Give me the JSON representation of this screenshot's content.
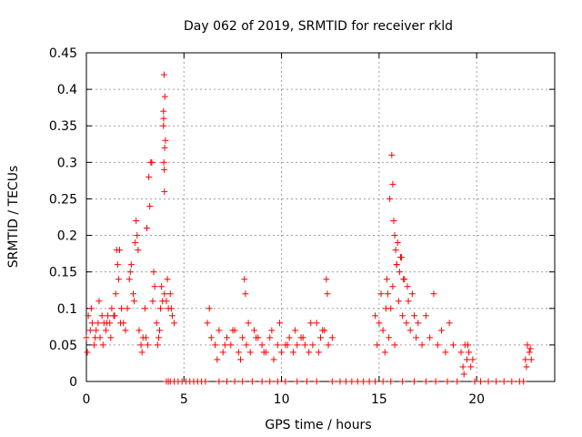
{
  "chart_data": {
    "type": "scatter",
    "title": "Day 062 of 2019, SRMTID for receiver rkld",
    "xlabel": "GPS time / hours",
    "ylabel": "SRMTID / TECUs",
    "xlim": [
      0,
      24
    ],
    "ylim": [
      0,
      0.45
    ],
    "grid": true,
    "marker": "+",
    "color": "#ff0000",
    "xticks": [
      0,
      5,
      10,
      15,
      20
    ],
    "xtick_labels": [
      "0",
      "5",
      "10",
      "15",
      "20"
    ],
    "yticks": [
      0,
      0.05,
      0.1,
      0.15,
      0.2,
      0.25,
      0.3,
      0.35,
      0.4,
      0.45
    ],
    "ytick_labels": [
      "0",
      "0.05",
      "0.1",
      "0.15",
      "0.2",
      "0.25",
      "0.3",
      "0.35",
      "0.4",
      "0.45"
    ],
    "x": [
      0.0,
      0.1,
      0.2,
      0.3,
      0.4,
      0.5,
      0.6,
      0.7,
      0.8,
      0.9,
      1.0,
      1.1,
      1.2,
      1.3,
      1.4,
      1.5,
      1.6,
      1.7,
      1.8,
      1.9,
      2.0,
      2.1,
      2.2,
      2.3,
      2.4,
      2.5,
      2.6,
      2.7,
      2.8,
      2.9,
      3.0,
      3.1,
      3.2,
      3.3,
      3.4,
      3.5,
      3.6,
      3.7,
      3.8,
      3.9,
      4.0,
      4.1,
      4.2,
      4.3,
      4.4,
      4.5,
      0.05,
      0.25,
      0.45,
      0.65,
      0.85,
      1.05,
      1.25,
      1.45,
      1.55,
      1.65,
      1.75,
      2.25,
      2.45,
      2.55,
      2.65,
      2.85,
      3.05,
      3.15,
      3.25,
      3.35,
      3.45,
      3.65,
      3.75,
      3.85,
      3.95,
      3.98,
      4.02,
      4.05,
      4.15,
      4.35,
      3.95,
      3.96,
      3.97,
      3.99,
      4.0,
      4.01,
      6.2,
      6.4,
      6.6,
      6.8,
      7.0,
      7.2,
      7.4,
      7.6,
      7.8,
      8.0,
      8.2,
      8.4,
      8.6,
      8.8,
      9.0,
      9.2,
      9.4,
      9.6,
      9.8,
      10.0,
      10.2,
      10.4,
      10.6,
      10.8,
      11.0,
      11.2,
      11.4,
      11.6,
      11.8,
      12.0,
      12.2,
      12.4,
      12.6,
      6.3,
      6.7,
      7.1,
      7.5,
      7.9,
      8.1,
      8.15,
      8.3,
      8.7,
      9.1,
      9.5,
      9.9,
      10.3,
      10.7,
      11.1,
      11.5,
      11.9,
      12.1,
      12.3,
      12.35,
      14.8,
      14.9,
      15.0,
      15.1,
      15.2,
      15.3,
      15.4,
      15.5,
      15.6,
      15.7,
      15.8,
      15.9,
      16.0,
      16.1,
      16.2,
      16.3,
      16.4,
      16.5,
      16.6,
      16.7,
      16.8,
      16.9,
      17.0,
      17.2,
      17.4,
      17.6,
      17.8,
      18.0,
      18.2,
      18.4,
      18.6,
      18.8,
      15.55,
      15.65,
      15.7,
      15.75,
      15.8,
      15.85,
      15.9,
      15.95,
      16.05,
      16.15,
      15.45,
      15.35,
      16.25,
      16.45,
      19.2,
      19.3,
      19.4,
      19.5,
      19.6,
      19.7,
      19.8,
      19.35,
      19.55,
      22.5,
      22.6,
      22.7,
      22.8,
      22.55,
      22.75,
      4.1,
      4.2,
      4.3,
      4.5,
      4.7,
      4.9,
      5.1,
      5.3,
      5.5,
      5.7,
      5.9,
      6.1,
      6.8,
      7.2,
      7.6,
      8.0,
      8.5,
      9.0,
      9.4,
      9.8,
      10.2,
      10.8,
      11.3,
      11.8,
      12.6,
      13.0,
      13.3,
      13.6,
      13.9,
      14.2,
      14.5,
      14.8,
      15.2,
      15.6,
      16.2,
      16.8,
      17.4,
      17.9,
      18.5,
      19.0,
      19.9,
      20.2,
      20.6,
      21.0,
      21.4,
      21.8,
      22.2,
      22.4
    ],
    "y": [
      0.06,
      0.09,
      0.07,
      0.08,
      0.05,
      0.07,
      0.08,
      0.06,
      0.09,
      0.08,
      0.07,
      0.09,
      0.08,
      0.1,
      0.09,
      0.12,
      0.16,
      0.18,
      0.1,
      0.08,
      0.07,
      0.1,
      0.14,
      0.16,
      0.12,
      0.19,
      0.2,
      0.07,
      0.05,
      0.06,
      0.1,
      0.21,
      0.28,
      0.3,
      0.11,
      0.13,
      0.08,
      0.06,
      0.1,
      0.11,
      0.12,
      0.11,
      0.1,
      0.12,
      0.09,
      0.08,
      0.04,
      0.1,
      0.06,
      0.11,
      0.05,
      0.08,
      0.06,
      0.09,
      0.18,
      0.14,
      0.08,
      0.15,
      0.11,
      0.22,
      0.18,
      0.04,
      0.06,
      0.05,
      0.24,
      0.3,
      0.15,
      0.05,
      0.07,
      0.13,
      0.35,
      0.42,
      0.39,
      0.33,
      0.14,
      0.1,
      0.37,
      0.36,
      0.3,
      0.29,
      0.26,
      0.32,
      0.08,
      0.06,
      0.05,
      0.07,
      0.04,
      0.06,
      0.05,
      0.07,
      0.04,
      0.06,
      0.05,
      0.04,
      0.07,
      0.06,
      0.05,
      0.04,
      0.06,
      0.03,
      0.05,
      0.04,
      0.05,
      0.06,
      0.04,
      0.05,
      0.06,
      0.05,
      0.04,
      0.05,
      0.08,
      0.06,
      0.07,
      0.05,
      0.06,
      0.1,
      0.03,
      0.05,
      0.07,
      0.03,
      0.14,
      0.12,
      0.08,
      0.06,
      0.04,
      0.07,
      0.08,
      0.05,
      0.07,
      0.06,
      0.08,
      0.04,
      0.07,
      0.14,
      0.12,
      0.09,
      0.05,
      0.08,
      0.12,
      0.07,
      0.04,
      0.14,
      0.06,
      0.1,
      0.13,
      0.05,
      0.16,
      0.11,
      0.17,
      0.09,
      0.14,
      0.08,
      0.11,
      0.07,
      0.12,
      0.09,
      0.06,
      0.08,
      0.05,
      0.09,
      0.06,
      0.12,
      0.05,
      0.07,
      0.04,
      0.08,
      0.05,
      0.25,
      0.31,
      0.27,
      0.22,
      0.2,
      0.18,
      0.16,
      0.19,
      0.15,
      0.17,
      0.12,
      0.1,
      0.14,
      0.13,
      0.04,
      0.02,
      0.05,
      0.03,
      0.04,
      0.02,
      0.03,
      0.01,
      0.05,
      0.03,
      0.05,
      0.04,
      0.03,
      0.02,
      0.045,
      0,
      0,
      0,
      0,
      0,
      0,
      0,
      0,
      0,
      0,
      0,
      0,
      0,
      0,
      0,
      0,
      0,
      0,
      0,
      0,
      0,
      0,
      0,
      0,
      0,
      0,
      0,
      0,
      0,
      0,
      0,
      0,
      0,
      0,
      0,
      0,
      0,
      0,
      0,
      0,
      0,
      0,
      0,
      0,
      0,
      0,
      0,
      0
    ]
  }
}
